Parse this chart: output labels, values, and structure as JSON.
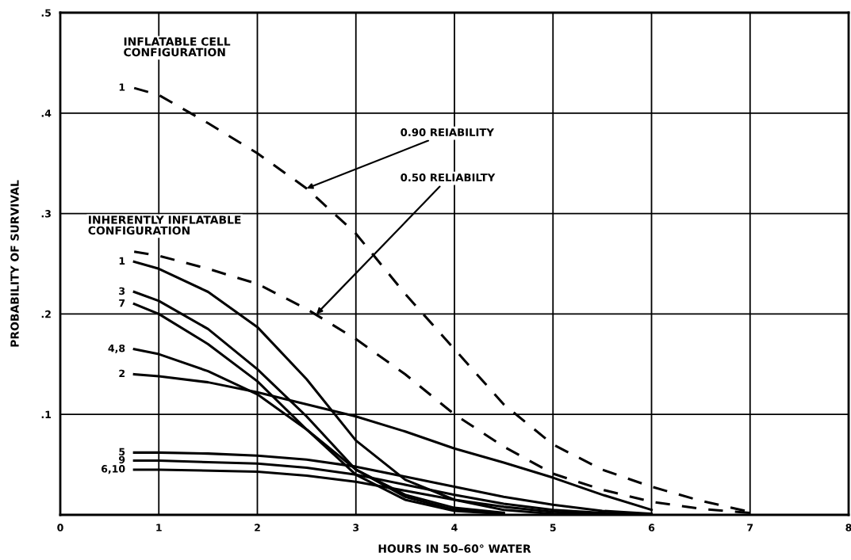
{
  "chart_data": {
    "type": "line",
    "xlabel": "HOURS IN 50–60° WATER",
    "ylabel": "PROBABILITY OF SURVIVAL",
    "xlim": [
      0,
      8
    ],
    "ylim": [
      0,
      0.5
    ],
    "xticks": [
      0,
      1,
      2,
      3,
      4,
      5,
      6,
      7,
      8
    ],
    "yticks": [
      {
        "value": 0,
        "label": null
      },
      {
        "value": 0.1,
        "label": ".1"
      },
      {
        "value": 0.2,
        "label": ".2"
      },
      {
        "value": 0.3,
        "label": ".3"
      },
      {
        "value": 0.4,
        "label": ".4"
      },
      {
        "value": 0.5,
        "label": ".5"
      }
    ],
    "grid": true,
    "legend": false,
    "marker": "none",
    "series": [
      {
        "name": "1",
        "color": "#000000",
        "line_style": "dashed",
        "x": [
          0.75,
          1,
          1.5,
          2,
          2.5,
          3,
          3.5,
          4,
          4.5,
          5,
          5.5,
          6,
          6.5,
          7
        ],
        "values": [
          0.425,
          0.418,
          0.39,
          0.36,
          0.325,
          0.28,
          0.22,
          0.165,
          0.11,
          0.07,
          0.045,
          0.028,
          0.014,
          0.003
        ]
      },
      {
        "color": "#000000",
        "line_style": "dashed",
        "x": [
          0.75,
          1,
          1.5,
          2,
          2.5,
          3,
          3.5,
          4,
          4.5,
          5,
          5.5,
          6,
          6.5,
          7
        ],
        "values": [
          0.262,
          0.258,
          0.245,
          0.23,
          0.205,
          0.175,
          0.14,
          0.1,
          0.068,
          0.041,
          0.025,
          0.013,
          0.006,
          0.002
        ]
      },
      {
        "name": "1",
        "color": "#000000",
        "line_style": "solid",
        "x": [
          0.75,
          1,
          1.5,
          2,
          2.5,
          3,
          3.5,
          4,
          4.5,
          5,
          6
        ],
        "values": [
          0.252,
          0.245,
          0.222,
          0.187,
          0.135,
          0.074,
          0.035,
          0.015,
          0.005,
          0.001,
          0
        ]
      },
      {
        "name": "3",
        "color": "#000000",
        "line_style": "solid",
        "x": [
          0.75,
          1,
          1.5,
          2,
          2.5,
          3,
          3.5,
          4,
          4.5
        ],
        "values": [
          0.222,
          0.213,
          0.185,
          0.145,
          0.098,
          0.045,
          0.018,
          0.005,
          0.001
        ]
      },
      {
        "name": "7",
        "color": "#000000",
        "line_style": "solid",
        "x": [
          0.75,
          1,
          1.5,
          2,
          2.5,
          3,
          3.5,
          4,
          4.5
        ],
        "values": [
          0.21,
          0.2,
          0.17,
          0.133,
          0.085,
          0.04,
          0.015,
          0.004,
          0.001
        ]
      },
      {
        "name": "4,8",
        "color": "#000000",
        "line_style": "solid",
        "x": [
          0.75,
          1,
          1.5,
          2,
          2.5,
          3,
          3.5,
          4,
          4.5
        ],
        "values": [
          0.165,
          0.16,
          0.143,
          0.12,
          0.085,
          0.045,
          0.02,
          0.007,
          0.002
        ]
      },
      {
        "name": "2",
        "color": "#000000",
        "line_style": "solid",
        "x": [
          0.75,
          1,
          1.5,
          2,
          2.5,
          3,
          3.5,
          4,
          4.5,
          5,
          5.5,
          6
        ],
        "values": [
          0.14,
          0.138,
          0.132,
          0.122,
          0.11,
          0.098,
          0.083,
          0.066,
          0.052,
          0.037,
          0.02,
          0.005
        ]
      },
      {
        "name": "5",
        "color": "#000000",
        "line_style": "solid",
        "x": [
          0.75,
          1,
          1.5,
          2,
          2.5,
          3,
          3.5,
          4,
          4.5,
          5,
          5.5,
          6
        ],
        "values": [
          0.062,
          0.062,
          0.061,
          0.059,
          0.055,
          0.048,
          0.038,
          0.028,
          0.018,
          0.01,
          0.004,
          0.001
        ]
      },
      {
        "name": "9",
        "color": "#000000",
        "line_style": "solid",
        "x": [
          0.75,
          1,
          2,
          2.5,
          3,
          3.5,
          4,
          4.5,
          5,
          5.5,
          6
        ],
        "values": [
          0.054,
          0.054,
          0.051,
          0.047,
          0.04,
          0.03,
          0.02,
          0.011,
          0.005,
          0.002,
          0
        ]
      },
      {
        "name": "6,10",
        "color": "#000000",
        "line_style": "solid",
        "x": [
          0.75,
          1,
          2,
          2.5,
          3,
          3.5,
          4,
          4.5,
          5,
          5.5,
          6
        ],
        "values": [
          0.045,
          0.045,
          0.043,
          0.039,
          0.033,
          0.024,
          0.015,
          0.008,
          0.003,
          0.001,
          0
        ]
      }
    ],
    "annotations": [
      "INFLATABLE CELL\nCONFIGURATION",
      "INHERENTLY INFLATABLE\nCONFIGURATION",
      {
        "text": "0.90 REIABILITY",
        "x": 2.5,
        "y": 0.325
      },
      {
        "text": "0.50 RELIABILTY",
        "x": 2.6,
        "y": 0.2
      }
    ]
  }
}
